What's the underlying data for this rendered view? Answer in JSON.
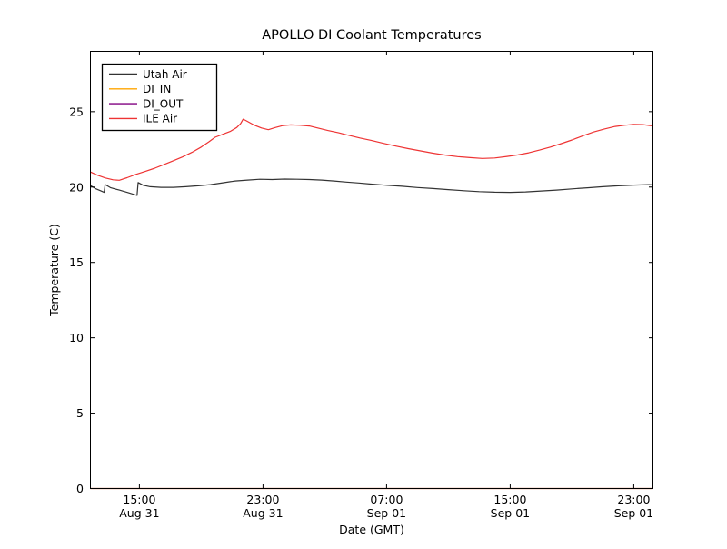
{
  "chart_data": {
    "type": "line",
    "title": "APOLLO DI Coolant Temperatures",
    "xlabel": "Date (GMT)",
    "ylabel": "Temperature (C)",
    "grid": false,
    "legend_position": "upper left",
    "x_axis": {
      "unit": "hours from Aug 31 00:00 GMT",
      "domain": [
        11.83,
        48.24
      ],
      "ticks": [
        {
          "t": 15,
          "time": "15:00",
          "date": "Aug 31"
        },
        {
          "t": 23,
          "time": "23:00",
          "date": "Aug 31"
        },
        {
          "t": 31,
          "time": "07:00",
          "date": "Sep 01"
        },
        {
          "t": 39,
          "time": "15:00",
          "date": "Sep 01"
        },
        {
          "t": 47,
          "time": "23:00",
          "date": "Sep 01"
        }
      ]
    },
    "y_axis": {
      "ylim": [
        0,
        29
      ],
      "ticks": [
        0,
        5,
        10,
        15,
        20,
        25
      ]
    },
    "series": [
      {
        "name": "Utah Air",
        "color": "#333333",
        "opacity": 1,
        "points": [
          [
            11.83,
            20.1
          ],
          [
            12.15,
            19.9
          ],
          [
            12.5,
            19.75
          ],
          [
            12.72,
            19.65
          ],
          [
            12.78,
            20.17
          ],
          [
            13.15,
            19.95
          ],
          [
            13.7,
            19.8
          ],
          [
            14.3,
            19.62
          ],
          [
            14.85,
            19.45
          ],
          [
            14.92,
            20.3
          ],
          [
            15.25,
            20.12
          ],
          [
            15.7,
            20.02
          ],
          [
            16.4,
            19.98
          ],
          [
            17.2,
            19.98
          ],
          [
            18.0,
            20.02
          ],
          [
            18.8,
            20.08
          ],
          [
            19.6,
            20.16
          ],
          [
            20.4,
            20.28
          ],
          [
            21.2,
            20.4
          ],
          [
            22.0,
            20.46
          ],
          [
            22.8,
            20.52
          ],
          [
            23.6,
            20.5
          ],
          [
            24.4,
            20.53
          ],
          [
            25.2,
            20.52
          ],
          [
            26.0,
            20.5
          ],
          [
            26.8,
            20.46
          ],
          [
            27.6,
            20.4
          ],
          [
            28.4,
            20.33
          ],
          [
            29.2,
            20.27
          ],
          [
            30.0,
            20.2
          ],
          [
            31.0,
            20.12
          ],
          [
            32.0,
            20.05
          ],
          [
            33.0,
            19.97
          ],
          [
            34.0,
            19.9
          ],
          [
            35.0,
            19.83
          ],
          [
            36.0,
            19.76
          ],
          [
            37.0,
            19.7
          ],
          [
            38.0,
            19.66
          ],
          [
            39.0,
            19.65
          ],
          [
            40.0,
            19.68
          ],
          [
            41.0,
            19.74
          ],
          [
            42.0,
            19.8
          ],
          [
            43.0,
            19.88
          ],
          [
            44.0,
            19.95
          ],
          [
            45.0,
            20.02
          ],
          [
            46.0,
            20.08
          ],
          [
            47.0,
            20.13
          ],
          [
            48.0,
            20.16
          ],
          [
            48.24,
            20.15
          ]
        ]
      },
      {
        "name": "DI_IN",
        "color": "#ffa500",
        "opacity": 0.9,
        "points": [
          [
            11.83,
            0
          ],
          [
            48.24,
            0
          ]
        ]
      },
      {
        "name": "DI_OUT",
        "color": "#800080",
        "opacity": 0.6,
        "points": [
          [
            11.83,
            0
          ],
          [
            48.24,
            0
          ]
        ]
      },
      {
        "name": "ILE Air",
        "color": "#ee3333",
        "opacity": 1,
        "points": [
          [
            11.83,
            21.0
          ],
          [
            12.3,
            20.78
          ],
          [
            12.8,
            20.6
          ],
          [
            13.3,
            20.48
          ],
          [
            13.7,
            20.45
          ],
          [
            14.2,
            20.62
          ],
          [
            14.8,
            20.85
          ],
          [
            15.4,
            21.05
          ],
          [
            16.0,
            21.25
          ],
          [
            16.6,
            21.5
          ],
          [
            17.2,
            21.75
          ],
          [
            17.8,
            22.0
          ],
          [
            18.4,
            22.3
          ],
          [
            19.0,
            22.65
          ],
          [
            19.5,
            23.0
          ],
          [
            19.9,
            23.3
          ],
          [
            20.4,
            23.5
          ],
          [
            20.9,
            23.7
          ],
          [
            21.3,
            23.95
          ],
          [
            21.55,
            24.2
          ],
          [
            21.72,
            24.5
          ],
          [
            21.95,
            24.38
          ],
          [
            22.4,
            24.12
          ],
          [
            22.9,
            23.92
          ],
          [
            23.35,
            23.8
          ],
          [
            23.8,
            23.95
          ],
          [
            24.3,
            24.08
          ],
          [
            24.8,
            24.12
          ],
          [
            25.4,
            24.1
          ],
          [
            26.0,
            24.05
          ],
          [
            26.6,
            23.9
          ],
          [
            27.2,
            23.75
          ],
          [
            27.9,
            23.6
          ],
          [
            28.6,
            23.42
          ],
          [
            29.3,
            23.25
          ],
          [
            30.0,
            23.1
          ],
          [
            30.8,
            22.9
          ],
          [
            31.6,
            22.72
          ],
          [
            32.4,
            22.55
          ],
          [
            33.2,
            22.4
          ],
          [
            34.0,
            22.25
          ],
          [
            34.8,
            22.12
          ],
          [
            35.6,
            22.02
          ],
          [
            36.4,
            21.95
          ],
          [
            37.2,
            21.9
          ],
          [
            38.0,
            21.93
          ],
          [
            38.8,
            22.03
          ],
          [
            39.5,
            22.13
          ],
          [
            40.2,
            22.27
          ],
          [
            40.9,
            22.45
          ],
          [
            41.6,
            22.65
          ],
          [
            42.3,
            22.88
          ],
          [
            43.0,
            23.12
          ],
          [
            43.7,
            23.4
          ],
          [
            44.4,
            23.65
          ],
          [
            45.1,
            23.85
          ],
          [
            45.8,
            24.02
          ],
          [
            46.4,
            24.1
          ],
          [
            47.0,
            24.15
          ],
          [
            47.6,
            24.14
          ],
          [
            48.05,
            24.08
          ],
          [
            48.24,
            24.06
          ]
        ]
      }
    ]
  }
}
